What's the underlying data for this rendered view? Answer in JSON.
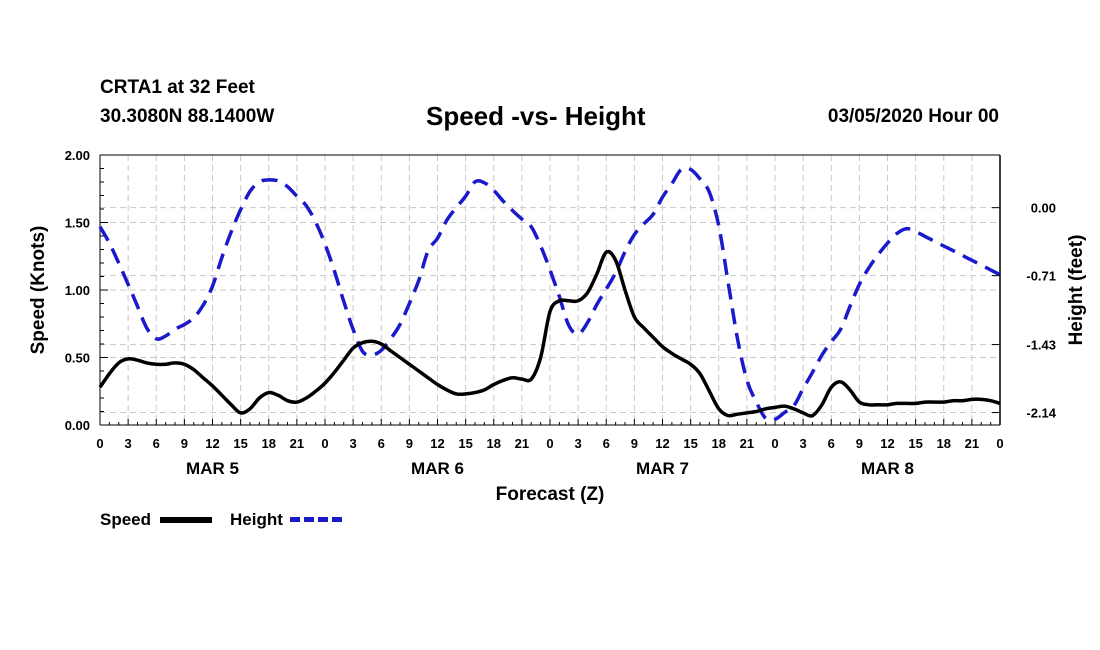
{
  "header": {
    "station": "CRTA1 at 32 Feet",
    "coords": "30.3080N 88.1400W",
    "title": "Speed -vs- Height",
    "date": "03/05/2020 Hour 00"
  },
  "legend": {
    "speed_label": "Speed",
    "height_label": "Height"
  },
  "chart_data": {
    "type": "line",
    "title": "Speed -vs- Height",
    "xlabel": "Forecast (Z)",
    "ylabel_left": "Speed (Knots)",
    "ylabel_right": "Height (feet)",
    "grid": true,
    "legend_position": "bottom-left",
    "x_hours_range": [
      0,
      96
    ],
    "x_tick_step_hours": 3,
    "x_tick_labels": [
      "0",
      "3",
      "6",
      "9",
      "12",
      "15",
      "18",
      "21",
      "0",
      "3",
      "6",
      "9",
      "12",
      "15",
      "18",
      "21",
      "0",
      "3",
      "6",
      "9",
      "12",
      "15",
      "18",
      "21",
      "0",
      "3",
      "6",
      "9",
      "12",
      "15",
      "18",
      "21",
      "0"
    ],
    "day_labels": [
      {
        "label": "MAR 5",
        "hour": 12
      },
      {
        "label": "MAR 6",
        "hour": 36
      },
      {
        "label": "MAR 7",
        "hour": 60
      },
      {
        "label": "MAR 8",
        "hour": 84
      }
    ],
    "y_left": {
      "range": [
        0,
        2.0
      ],
      "ticks": [
        "0.00",
        "0.50",
        "1.00",
        "1.50",
        "2.00"
      ]
    },
    "y_right": {
      "range": [
        -2.27,
        0.55
      ],
      "ticks": [
        {
          "value": 0.0,
          "label": "0.00"
        },
        {
          "value": -0.71,
          "label": "-0.71"
        },
        {
          "value": -1.43,
          "label": "-1.43"
        },
        {
          "value": -2.14,
          "label": "-2.14"
        }
      ]
    },
    "series": [
      {
        "name": "Speed",
        "axis": "left",
        "color": "#000000",
        "style": "solid",
        "x": [
          0,
          1,
          2,
          3,
          4,
          5,
          6,
          7,
          8,
          9,
          10,
          11,
          12,
          13,
          14,
          15,
          16,
          17,
          18,
          19,
          20,
          21,
          22,
          23,
          24,
          25,
          26,
          27,
          28,
          29,
          30,
          31,
          32,
          33,
          34,
          35,
          36,
          37,
          38,
          39,
          40,
          41,
          42,
          43,
          44,
          45,
          46,
          47,
          48,
          49,
          50,
          51,
          52,
          53,
          54,
          55,
          56,
          57,
          58,
          59,
          60,
          61,
          62,
          63,
          64,
          65,
          66,
          67,
          68,
          69,
          70,
          71,
          72,
          73,
          74,
          75,
          76,
          77,
          78,
          79,
          80,
          81,
          82,
          83,
          84,
          85,
          86,
          87,
          88,
          89,
          90,
          91,
          92,
          93,
          94,
          95,
          96
        ],
        "values": [
          0.28,
          0.38,
          0.46,
          0.49,
          0.48,
          0.46,
          0.45,
          0.45,
          0.46,
          0.45,
          0.41,
          0.35,
          0.29,
          0.22,
          0.15,
          0.09,
          0.12,
          0.2,
          0.24,
          0.22,
          0.18,
          0.17,
          0.2,
          0.25,
          0.31,
          0.39,
          0.48,
          0.57,
          0.61,
          0.62,
          0.6,
          0.55,
          0.5,
          0.45,
          0.4,
          0.35,
          0.3,
          0.26,
          0.23,
          0.23,
          0.24,
          0.26,
          0.3,
          0.33,
          0.35,
          0.34,
          0.34,
          0.5,
          0.84,
          0.92,
          0.92,
          0.92,
          0.98,
          1.12,
          1.28,
          1.22,
          1.0,
          0.8,
          0.72,
          0.65,
          0.58,
          0.53,
          0.49,
          0.45,
          0.38,
          0.25,
          0.12,
          0.07,
          0.08,
          0.09,
          0.1,
          0.12,
          0.13,
          0.14,
          0.12,
          0.09,
          0.07,
          0.15,
          0.28,
          0.32,
          0.26,
          0.17,
          0.15,
          0.15,
          0.15,
          0.16,
          0.16,
          0.16,
          0.17,
          0.17,
          0.17,
          0.18,
          0.18,
          0.19,
          0.19,
          0.18,
          0.16
        ]
      },
      {
        "name": "Height",
        "axis": "right",
        "color": "#1a1acc",
        "style": "dashed",
        "x": [
          0,
          1,
          2,
          3,
          4,
          5,
          6,
          7,
          8,
          9,
          10,
          11,
          12,
          13,
          14,
          15,
          16,
          17,
          18,
          19,
          20,
          21,
          22,
          23,
          24,
          25,
          26,
          27,
          28,
          29,
          30,
          31,
          32,
          33,
          34,
          35,
          36,
          37,
          38,
          39,
          40,
          41,
          42,
          43,
          44,
          45,
          46,
          47,
          48,
          49,
          50,
          51,
          52,
          53,
          54,
          55,
          56,
          57,
          58,
          59,
          60,
          61,
          62,
          63,
          64,
          65,
          66,
          67,
          68,
          69,
          70,
          71,
          72,
          73,
          74,
          75,
          76,
          77,
          78,
          79,
          80,
          81,
          82,
          83,
          84,
          85,
          86,
          87,
          88,
          89,
          90,
          91,
          92,
          93,
          94,
          95,
          96
        ],
        "values": [
          -0.2,
          -0.37,
          -0.58,
          -0.8,
          -1.03,
          -1.26,
          -1.37,
          -1.34,
          -1.27,
          -1.22,
          -1.15,
          -1.02,
          -0.82,
          -0.52,
          -0.25,
          -0.02,
          0.17,
          0.27,
          0.29,
          0.28,
          0.22,
          0.12,
          0.02,
          -0.15,
          -0.38,
          -0.66,
          -0.98,
          -1.27,
          -1.5,
          -1.54,
          -1.49,
          -1.37,
          -1.22,
          -1.0,
          -0.76,
          -0.45,
          -0.32,
          -0.13,
          0.0,
          0.12,
          0.27,
          0.26,
          0.18,
          0.07,
          -0.03,
          -0.12,
          -0.2,
          -0.4,
          -0.65,
          -0.93,
          -1.23,
          -1.32,
          -1.2,
          -1.01,
          -0.85,
          -0.68,
          -0.46,
          -0.28,
          -0.17,
          -0.07,
          0.11,
          0.25,
          0.4,
          0.4,
          0.3,
          0.16,
          -0.19,
          -0.78,
          -1.37,
          -1.8,
          -2.03,
          -2.2,
          -2.21,
          -2.14,
          -2.07,
          -1.89,
          -1.72,
          -1.54,
          -1.4,
          -1.27,
          -1.03,
          -0.8,
          -0.63,
          -0.49,
          -0.37,
          -0.27,
          -0.22,
          -0.25,
          -0.3,
          -0.35,
          -0.4,
          -0.45,
          -0.5,
          -0.55,
          -0.6,
          -0.65,
          -0.7
        ]
      }
    ]
  }
}
